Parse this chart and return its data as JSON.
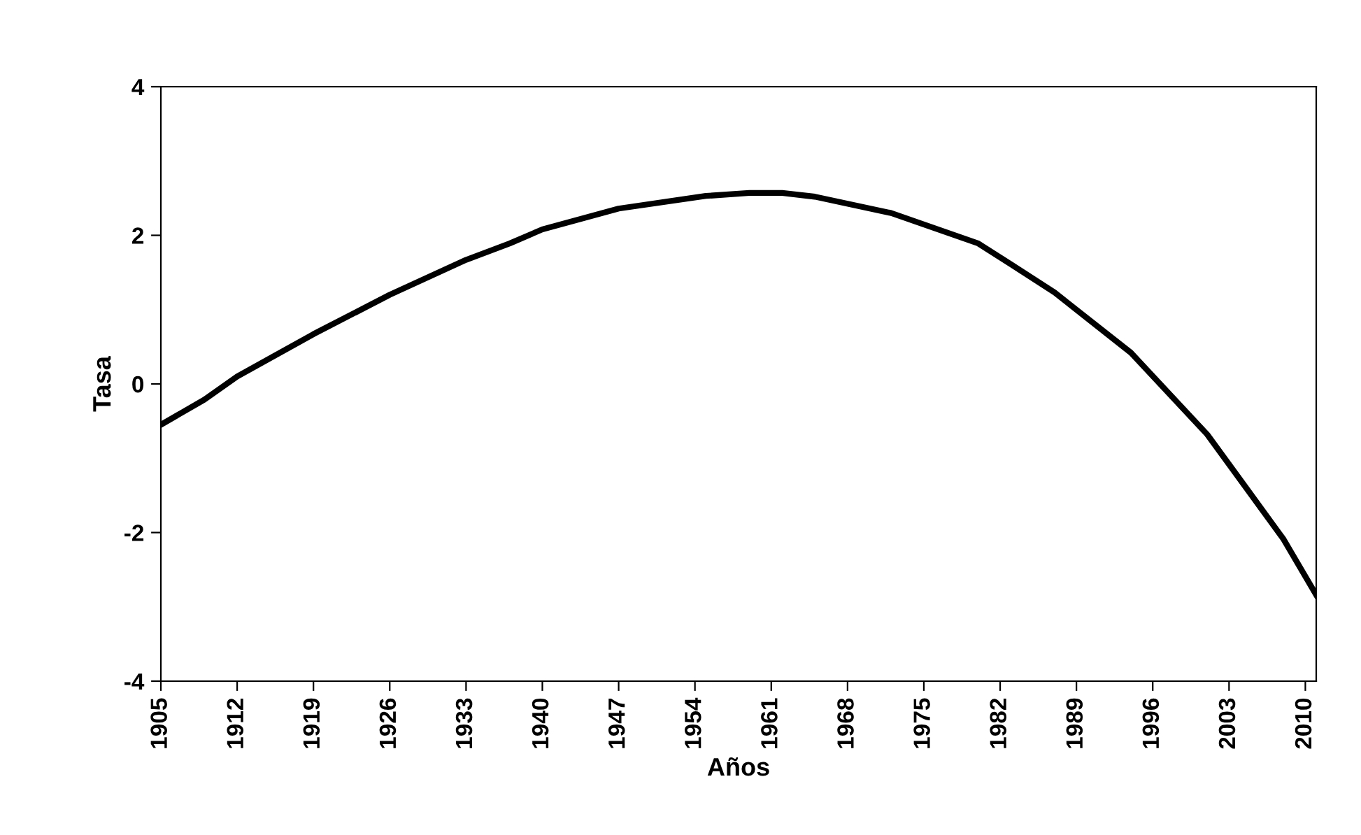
{
  "chart_data": {
    "type": "line",
    "xlabel": "Años",
    "ylabel": "Tasa",
    "series": [
      {
        "color": "#000000",
        "x": [
          1905,
          1909,
          1912,
          1919,
          1926,
          1933,
          1937,
          1940,
          1947,
          1955,
          1959,
          1962,
          1965,
          1972,
          1980,
          1983,
          1987,
          1994,
          2001,
          2008,
          2011
        ],
        "values": [
          -0.55,
          -0.21,
          0.1,
          0.67,
          1.2,
          1.67,
          1.89,
          2.08,
          2.36,
          2.53,
          2.57,
          2.57,
          2.52,
          2.3,
          1.89,
          1.61,
          1.23,
          0.42,
          -0.68,
          -2.09,
          -2.84
        ]
      }
    ],
    "xlim": [
      1905,
      2011
    ],
    "xticks": [
      1905,
      1912,
      1919,
      1926,
      1933,
      1940,
      1947,
      1954,
      1961,
      1968,
      1975,
      1982,
      1989,
      1996,
      2003,
      2010
    ],
    "ylim": [
      -4,
      4
    ],
    "yticks": [
      -4,
      -2,
      0,
      2,
      4
    ],
    "grid": false,
    "legend": false,
    "marker": "none",
    "line_style": "solid"
  }
}
